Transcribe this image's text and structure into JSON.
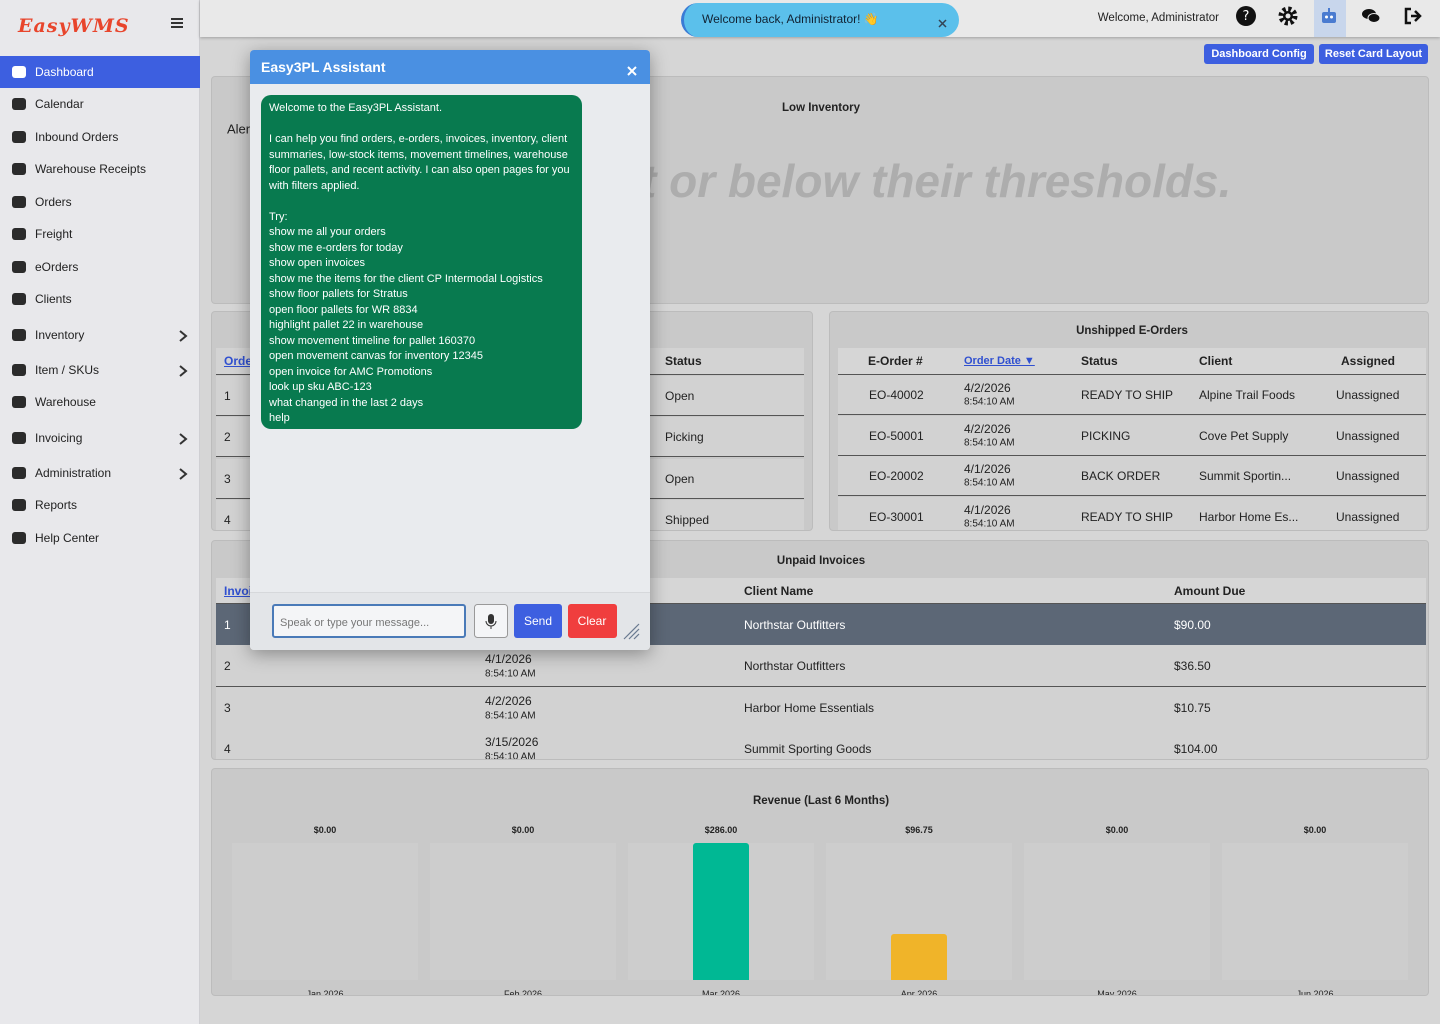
{
  "sidebar": {
    "brand": "EasyWMS",
    "items": [
      {
        "label": "Dashboard",
        "active": true
      },
      {
        "label": "Calendar"
      },
      {
        "label": "Inbound Orders"
      },
      {
        "label": "Warehouse Receipts"
      },
      {
        "label": "Orders"
      },
      {
        "label": "Freight"
      },
      {
        "label": "eOrders"
      },
      {
        "label": "Clients"
      },
      {
        "label": "Inventory",
        "submenu": true
      },
      {
        "label": "Item / SKUs",
        "submenu": true
      },
      {
        "label": "Warehouse"
      },
      {
        "label": "Invoicing",
        "submenu": true
      },
      {
        "label": "Administration",
        "submenu": true
      },
      {
        "label": "Reports"
      },
      {
        "label": "Help Center"
      }
    ]
  },
  "header": {
    "toast": "Welcome back, Administrator! 👋",
    "welcome": "Welcome, Administrator"
  },
  "toolbar": {
    "buttons": [
      "Dashboard Config",
      "Reset Card Layout"
    ]
  },
  "low_inventory": {
    "title": "Low Inventory",
    "side_label": "Aler",
    "message": "t or below their thresholds."
  },
  "orders_table": {
    "columns": [
      "Orde",
      "Status"
    ],
    "rows": [
      [
        1,
        "Open"
      ],
      [
        2,
        "Picking"
      ],
      [
        3,
        "Open"
      ],
      [
        4,
        "Shipped"
      ]
    ]
  },
  "eorders": {
    "title": "Unshipped E-Orders",
    "columns": [
      "E-Order #",
      "Order Date ▼",
      "Status",
      "Client",
      "Assigned"
    ],
    "rows": [
      {
        "id": "EO-40002",
        "date": "4/2/2026",
        "time": "8:54:10 AM",
        "status": "READY TO SHIP",
        "client": "Alpine Trail Foods",
        "assigned": "Unassigned"
      },
      {
        "id": "EO-50001",
        "date": "4/2/2026",
        "time": "8:54:10 AM",
        "status": "PICKING",
        "client": "Cove Pet Supply",
        "assigned": "Unassigned"
      },
      {
        "id": "EO-20002",
        "date": "4/1/2026",
        "time": "8:54:10 AM",
        "status": "BACK ORDER",
        "client": "Summit Sportin...",
        "assigned": "Unassigned"
      },
      {
        "id": "EO-30001",
        "date": "4/1/2026",
        "time": "8:54:10 AM",
        "status": "READY TO SHIP",
        "client": "Harbor Home Es...",
        "assigned": "Unassigned"
      }
    ]
  },
  "invoices": {
    "title": "Unpaid Invoices",
    "columns": [
      "Invoi",
      "Client Name",
      "Amount Due"
    ],
    "rows": [
      {
        "no": 1,
        "client": "Northstar Outfitters",
        "amount": "$90.00"
      },
      {
        "no": 2,
        "date": "4/1/2026",
        "time": "8:54:10 AM",
        "client": "Northstar Outfitters",
        "amount": "$36.50"
      },
      {
        "no": 3,
        "date": "4/2/2026",
        "time": "8:54:10 AM",
        "client": "Harbor Home Essentials",
        "amount": "$10.75"
      },
      {
        "no": 4,
        "date": "3/15/2026",
        "time": "8:54:10 AM",
        "client": "Summit Sporting Goods",
        "amount": "$104.00"
      }
    ]
  },
  "revenue_chart": {
    "type": "bar",
    "title": "Revenue (Last 6 Months)",
    "categories": [
      "Jan 2026",
      "Feb 2026",
      "Mar 2026",
      "Apr 2026",
      "May 2026",
      "Jun 2026"
    ],
    "values": [
      0,
      0,
      286,
      96.75,
      0,
      0
    ],
    "value_labels": [
      "$0.00",
      "$0.00",
      "$286.00",
      "$96.75",
      "$0.00",
      "$0.00"
    ],
    "colors": [
      "#00b894",
      "#00b894",
      "#00b894",
      "#f0b429",
      "#00b894",
      "#00b894"
    ]
  },
  "assistant": {
    "title": "Easy3PL Assistant",
    "intro": "Welcome to the Easy3PL Assistant.",
    "body": "I can help you find orders, e-orders, invoices, inventory, client summaries, low-stock items, movement timelines, warehouse floor pallets, and recent activity. I can also open pages for you with filters applied.",
    "try_label": "Try:",
    "suggestions": [
      "show me all your orders",
      "show me e-orders for today",
      "show open invoices",
      "show me the items for the client CP Intermodal Logistics",
      "show floor pallets for Stratus",
      "open floor pallets for WR 8834",
      "highlight pallet 22 in warehouse",
      "show movement timeline for pallet 160370",
      "open movement canvas for inventory 12345",
      "open invoice for AMC Promotions",
      "look up sku ABC-123",
      "what changed in the last 2 days",
      "help"
    ],
    "placeholder": "Speak or type your message...",
    "send": "Send",
    "clear": "Clear"
  }
}
